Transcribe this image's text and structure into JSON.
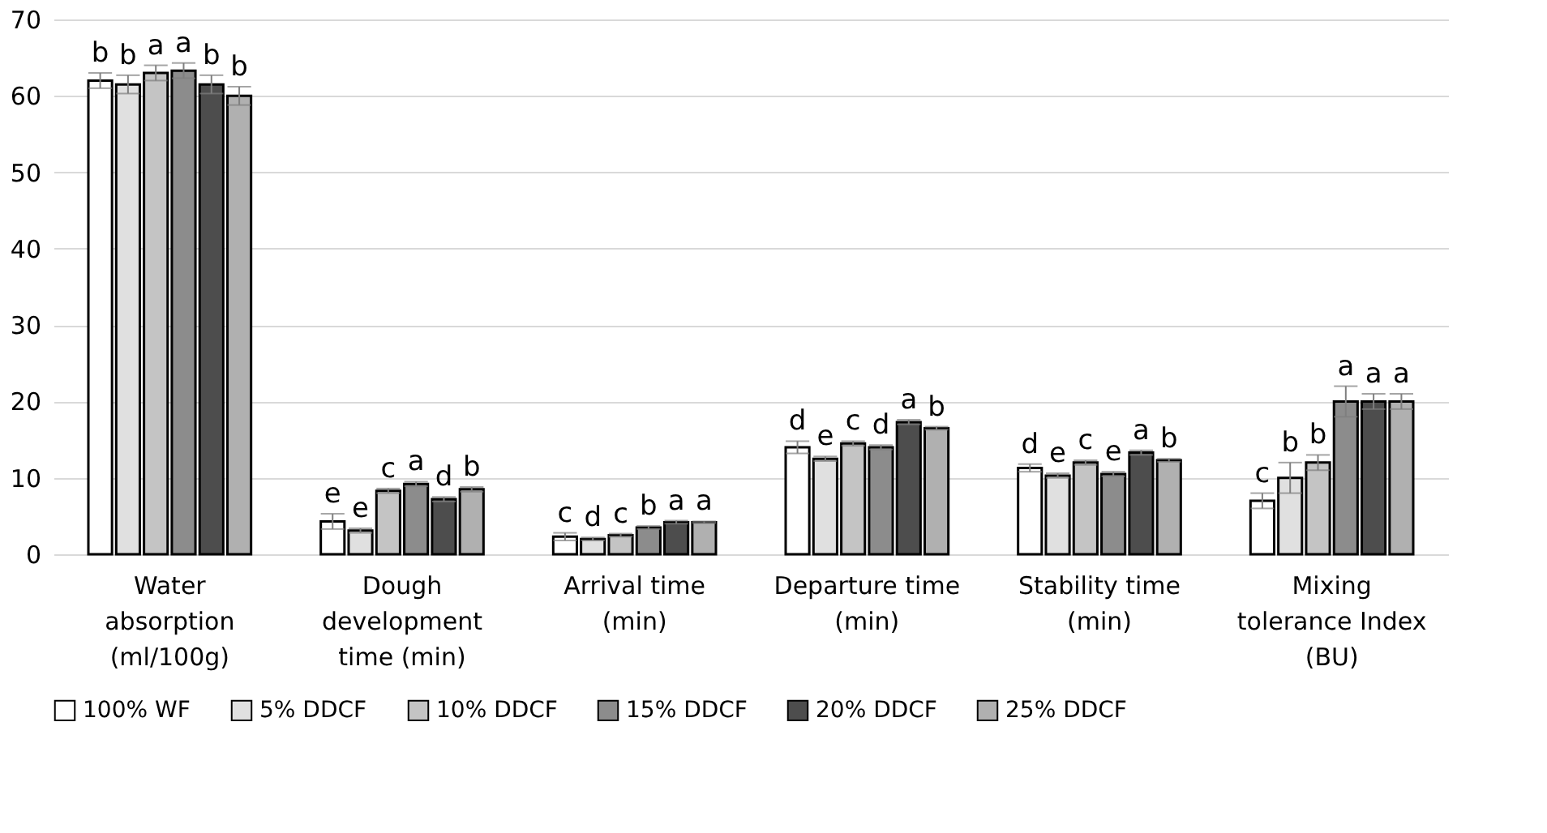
{
  "chart_data": {
    "type": "bar",
    "categories": [
      "Water absorption (ml/100g)",
      "Dough development time (min)",
      "Arrival time (min)",
      "Departure time (min)",
      "Stability time (min)",
      "Mixing tolerance Index (BU)"
    ],
    "ylim": [
      0,
      70
    ],
    "yticks": [
      0,
      10,
      20,
      30,
      40,
      50,
      60,
      70
    ],
    "grid": "y",
    "legend": "bottom",
    "series": [
      {
        "name": "100% WF",
        "color": "#ffffff",
        "values": [
          62,
          4.3,
          2.3,
          14,
          11.3,
          7
        ],
        "errors": [
          1,
          1,
          0.5,
          0.8,
          0.5,
          1
        ],
        "value_labels": [
          "b",
          "e",
          "c",
          "d",
          "d",
          "c"
        ]
      },
      {
        "name": "5% DDCF",
        "color": "#e0e0e0",
        "values": [
          61.5,
          3.1,
          2,
          12.5,
          10.3,
          10
        ],
        "errors": [
          1.2,
          0.3,
          0.2,
          0.3,
          0.3,
          2
        ],
        "value_labels": [
          "b",
          "e",
          "d",
          "e",
          "e",
          "b"
        ]
      },
      {
        "name": "10% DDCF",
        "color": "#c4c4c4",
        "values": [
          63,
          8.3,
          2.5,
          14.5,
          12,
          12
        ],
        "errors": [
          1,
          0.3,
          0.2,
          0.3,
          0.3,
          1
        ],
        "value_labels": [
          "a",
          "c",
          "c",
          "c",
          "c",
          "b"
        ]
      },
      {
        "name": "15% DDCF",
        "color": "#8c8c8c",
        "values": [
          63.3,
          9.2,
          3.5,
          14,
          10.5,
          20
        ],
        "errors": [
          1,
          0.3,
          0.2,
          0.3,
          0.3,
          2
        ],
        "value_labels": [
          "a",
          "a",
          "b",
          "d",
          "e",
          "a"
        ]
      },
      {
        "name": "20% DDCF",
        "color": "#4d4d4d",
        "values": [
          61.5,
          7.2,
          4.2,
          17.3,
          13.3,
          20
        ],
        "errors": [
          1.2,
          0.3,
          0.2,
          0.3,
          0.3,
          1
        ],
        "value_labels": [
          "b",
          "d",
          "a",
          "a",
          "a",
          "a"
        ]
      },
      {
        "name": "25% DDCF",
        "color": "#b0b0b0",
        "values": [
          60,
          8.5,
          4.2,
          16.5,
          12.3,
          20
        ],
        "errors": [
          1.2,
          0.3,
          0.1,
          0.2,
          0.2,
          1
        ],
        "value_labels": [
          "b",
          "b",
          "a",
          "b",
          "b",
          "a"
        ]
      }
    ]
  }
}
